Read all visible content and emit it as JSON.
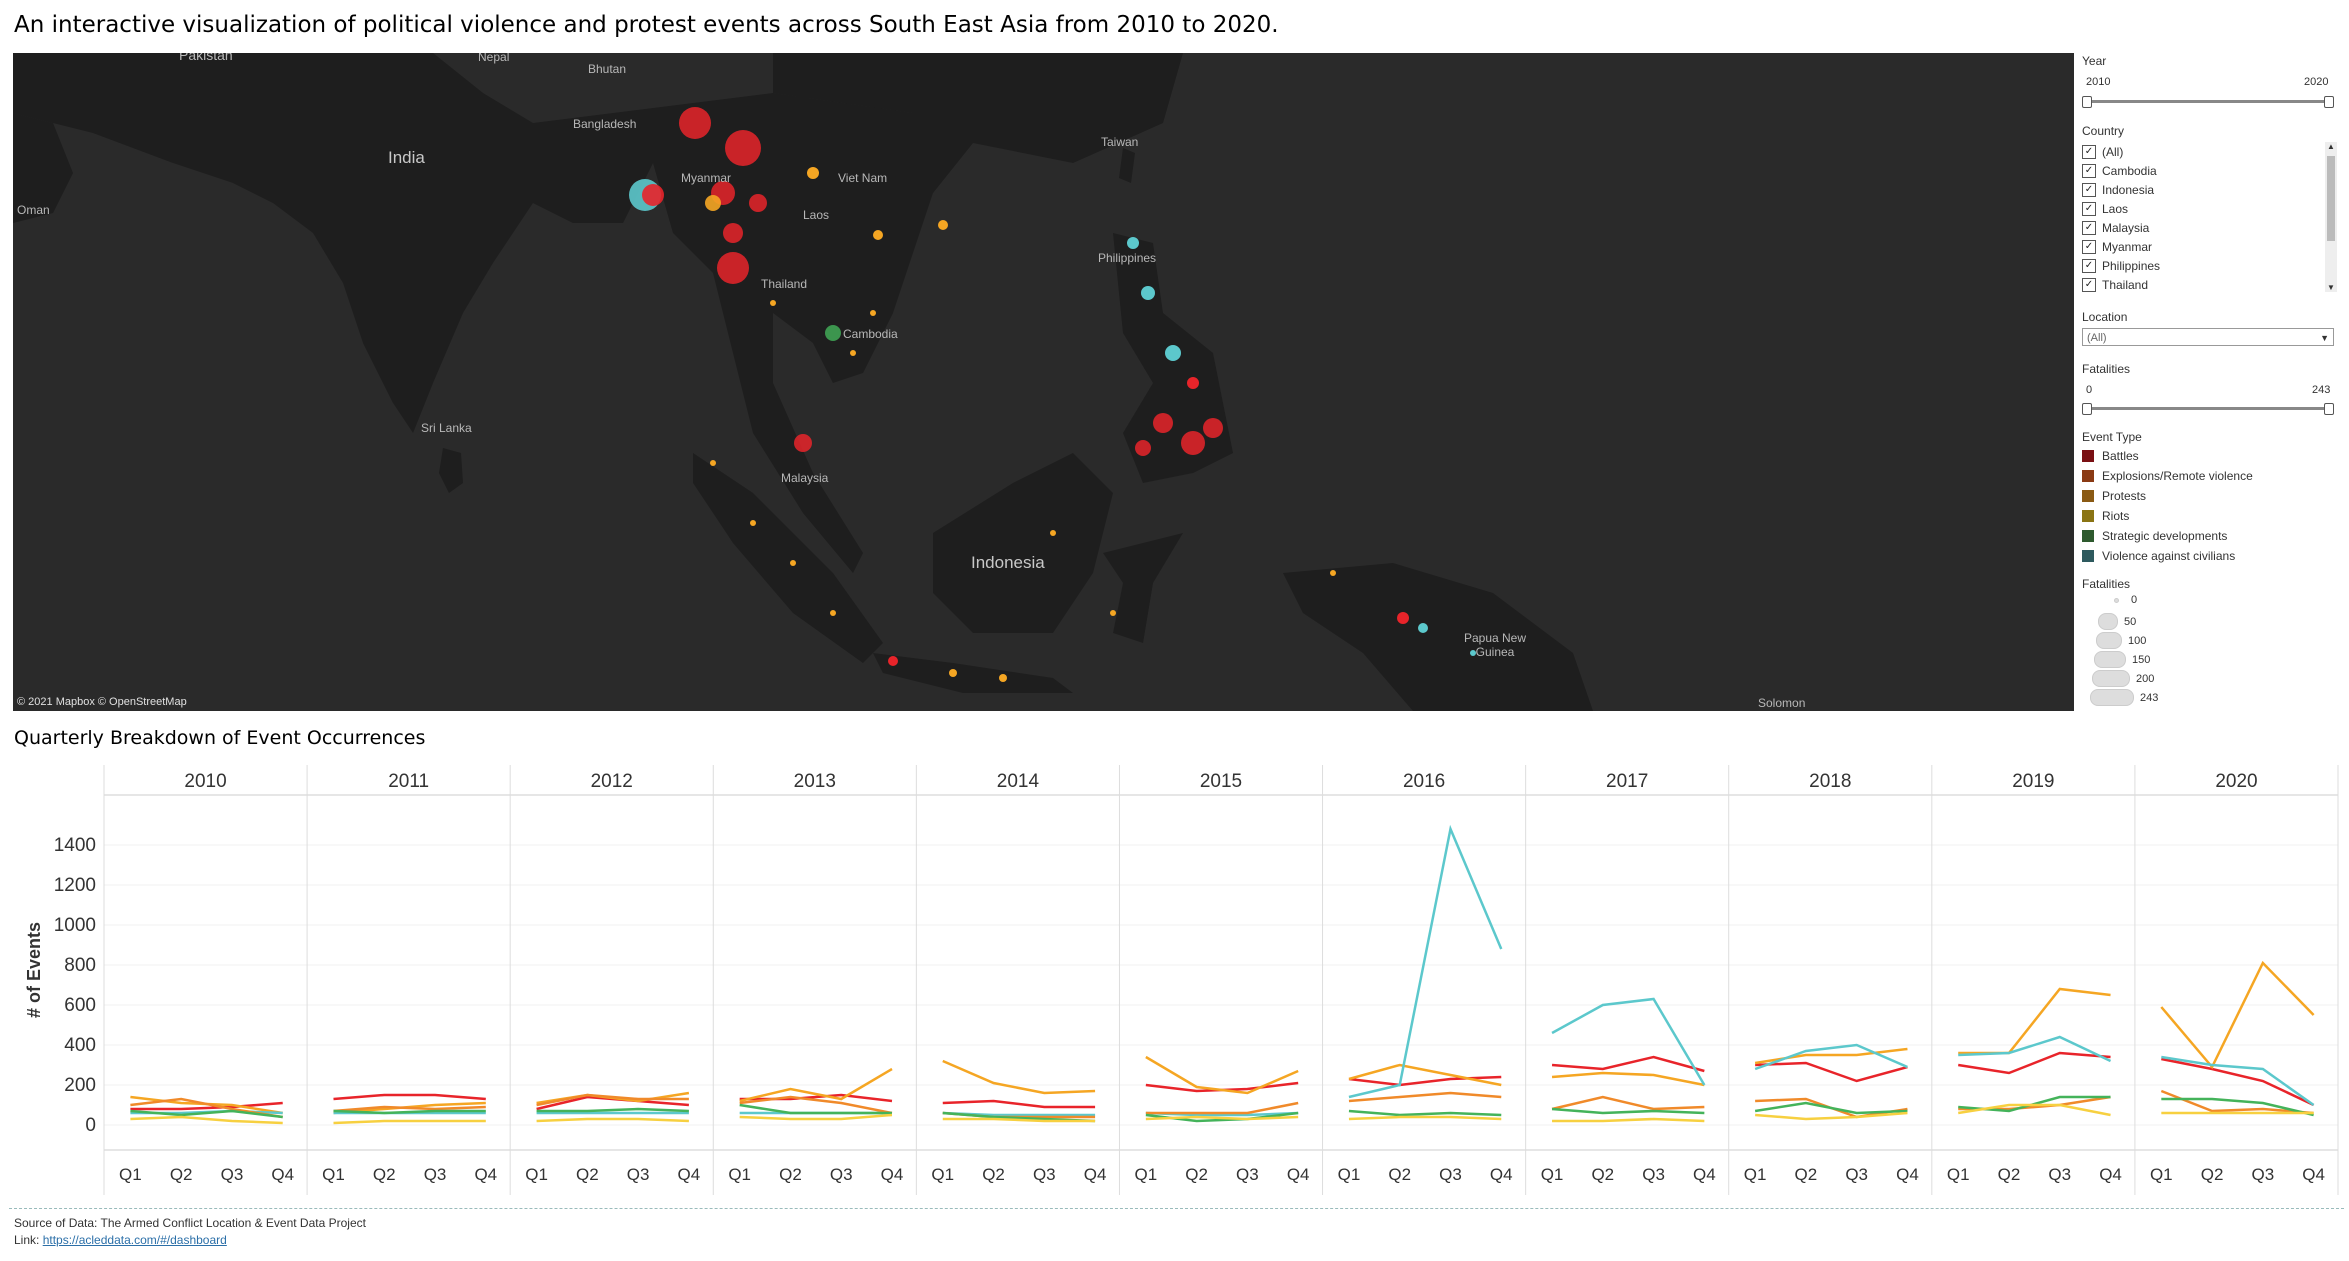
{
  "title": "An interactive visualization of political violence and protest events across South East Asia from 2010 to 2020.",
  "map": {
    "labels": [
      "Pakistan",
      "Nepal",
      "Bhutan",
      "India",
      "Bangladesh",
      "Oman",
      "Myanmar",
      "Viet Nam",
      "Laos",
      "Taiwan",
      "Thailand",
      "Cambodia",
      "Philippines",
      "Sri Lanka",
      "Malaysia",
      "Indonesia",
      "Papua New Guinea",
      "Solomon"
    ],
    "credit": "© 2021 Mapbox © OpenStreetMap"
  },
  "filters": {
    "year": {
      "label": "Year",
      "min": "2010",
      "max": "2020",
      "value_from": 2010,
      "value_to": 2020
    },
    "country": {
      "label": "Country",
      "items": [
        "(All)",
        "Cambodia",
        "Indonesia",
        "Laos",
        "Malaysia",
        "Myanmar",
        "Philippines",
        "Thailand"
      ],
      "checked": true
    },
    "location": {
      "label": "Location",
      "value": "(All)"
    },
    "fatalities": {
      "label": "Fatalities",
      "min": "0",
      "max": "243",
      "value_from": 0,
      "value_to": 243
    }
  },
  "legend_event_type": {
    "label": "Event Type",
    "items": [
      {
        "name": "Battles",
        "color": "#7a1013"
      },
      {
        "name": "Explosions/Remote violence",
        "color": "#8a3a14"
      },
      {
        "name": "Protests",
        "color": "#8a5a14"
      },
      {
        "name": "Riots",
        "color": "#8a7414"
      },
      {
        "name": "Strategic developments",
        "color": "#2e5a2e"
      },
      {
        "name": "Violence against civilians",
        "color": "#2e5a5e"
      }
    ]
  },
  "legend_fatalities": {
    "label": "Fatalities",
    "items": [
      "0",
      "50",
      "100",
      "150",
      "200",
      "243"
    ]
  },
  "chart_title": "Quarterly Breakdown of Event Occurrences",
  "chart_data": {
    "type": "line",
    "years": [
      "2010",
      "2011",
      "2012",
      "2013",
      "2014",
      "2015",
      "2016",
      "2017",
      "2018",
      "2019",
      "2020"
    ],
    "quarters": [
      "Q1",
      "Q2",
      "Q3",
      "Q4"
    ],
    "ylabel": "# of Events",
    "ylim": [
      -50,
      1600
    ],
    "yticks": [
      0,
      200,
      400,
      600,
      800,
      1000,
      1200,
      1400
    ],
    "series": [
      {
        "color": "#e8242a",
        "values": [
          [
            80,
            80,
            90,
            110
          ],
          [
            130,
            150,
            150,
            130
          ],
          [
            80,
            140,
            120,
            100
          ],
          [
            130,
            130,
            150,
            120
          ],
          [
            110,
            120,
            90,
            90
          ],
          [
            200,
            170,
            180,
            210
          ],
          [
            230,
            200,
            230,
            240
          ],
          [
            300,
            280,
            340,
            270
          ],
          [
            300,
            310,
            220,
            290
          ],
          [
            300,
            260,
            360,
            340
          ],
          [
            330,
            280,
            220,
            100
          ]
        ]
      },
      {
        "color": "#f5a623",
        "values": [
          [
            140,
            110,
            100,
            60
          ],
          [
            60,
            80,
            100,
            110
          ],
          [
            110,
            150,
            120,
            160
          ],
          [
            120,
            180,
            130,
            280
          ],
          [
            320,
            210,
            160,
            170
          ],
          [
            340,
            190,
            160,
            270
          ],
          [
            230,
            300,
            250,
            200
          ],
          [
            240,
            260,
            250,
            200
          ],
          [
            310,
            350,
            350,
            380
          ],
          [
            360,
            360,
            680,
            650
          ],
          [
            590,
            290,
            810,
            550
          ]
        ]
      },
      {
        "color": "#5cc8cc",
        "values": [
          [
            60,
            60,
            70,
            60
          ],
          [
            60,
            60,
            60,
            60
          ],
          [
            60,
            60,
            60,
            60
          ],
          [
            60,
            60,
            60,
            60
          ],
          [
            60,
            50,
            50,
            50
          ],
          [
            60,
            50,
            50,
            60
          ],
          [
            140,
            200,
            1480,
            880
          ],
          [
            460,
            600,
            630,
            200
          ],
          [
            280,
            370,
            400,
            290
          ],
          [
            350,
            360,
            440,
            320
          ],
          [
            340,
            300,
            280,
            100
          ]
        ]
      },
      {
        "color": "#f08a2a",
        "values": [
          [
            100,
            130,
            80,
            40
          ],
          [
            70,
            90,
            80,
            90
          ],
          [
            100,
            150,
            130,
            130
          ],
          [
            110,
            140,
            110,
            60
          ],
          [
            60,
            40,
            40,
            40
          ],
          [
            60,
            60,
            60,
            110
          ],
          [
            120,
            140,
            160,
            140
          ],
          [
            80,
            140,
            80,
            90
          ],
          [
            120,
            130,
            40,
            80
          ],
          [
            80,
            80,
            100,
            140
          ],
          [
            170,
            70,
            80,
            60
          ]
        ]
      },
      {
        "color": "#44b35a",
        "values": [
          [
            70,
            50,
            70,
            40
          ],
          [
            70,
            60,
            70,
            70
          ],
          [
            70,
            70,
            80,
            70
          ],
          [
            100,
            60,
            60,
            60
          ],
          [
            60,
            40,
            30,
            20
          ],
          [
            50,
            20,
            30,
            60
          ],
          [
            70,
            50,
            60,
            50
          ],
          [
            80,
            60,
            70,
            60
          ],
          [
            70,
            110,
            60,
            70
          ],
          [
            90,
            70,
            140,
            140
          ],
          [
            130,
            130,
            110,
            50
          ]
        ]
      },
      {
        "color": "#f7d040",
        "values": [
          [
            30,
            40,
            20,
            10
          ],
          [
            10,
            20,
            20,
            20
          ],
          [
            20,
            30,
            30,
            20
          ],
          [
            40,
            30,
            30,
            50
          ],
          [
            30,
            30,
            20,
            20
          ],
          [
            30,
            40,
            30,
            40
          ],
          [
            30,
            40,
            40,
            30
          ],
          [
            20,
            20,
            30,
            20
          ],
          [
            50,
            30,
            40,
            60
          ],
          [
            60,
            100,
            100,
            50
          ],
          [
            60,
            60,
            60,
            60
          ]
        ]
      }
    ]
  },
  "footer": {
    "source": "Source of Data: The Armed Conflict Location & Event Data Project",
    "link_prefix": "Link: ",
    "link_text": "https://acleddata.com/#/dashboard"
  }
}
